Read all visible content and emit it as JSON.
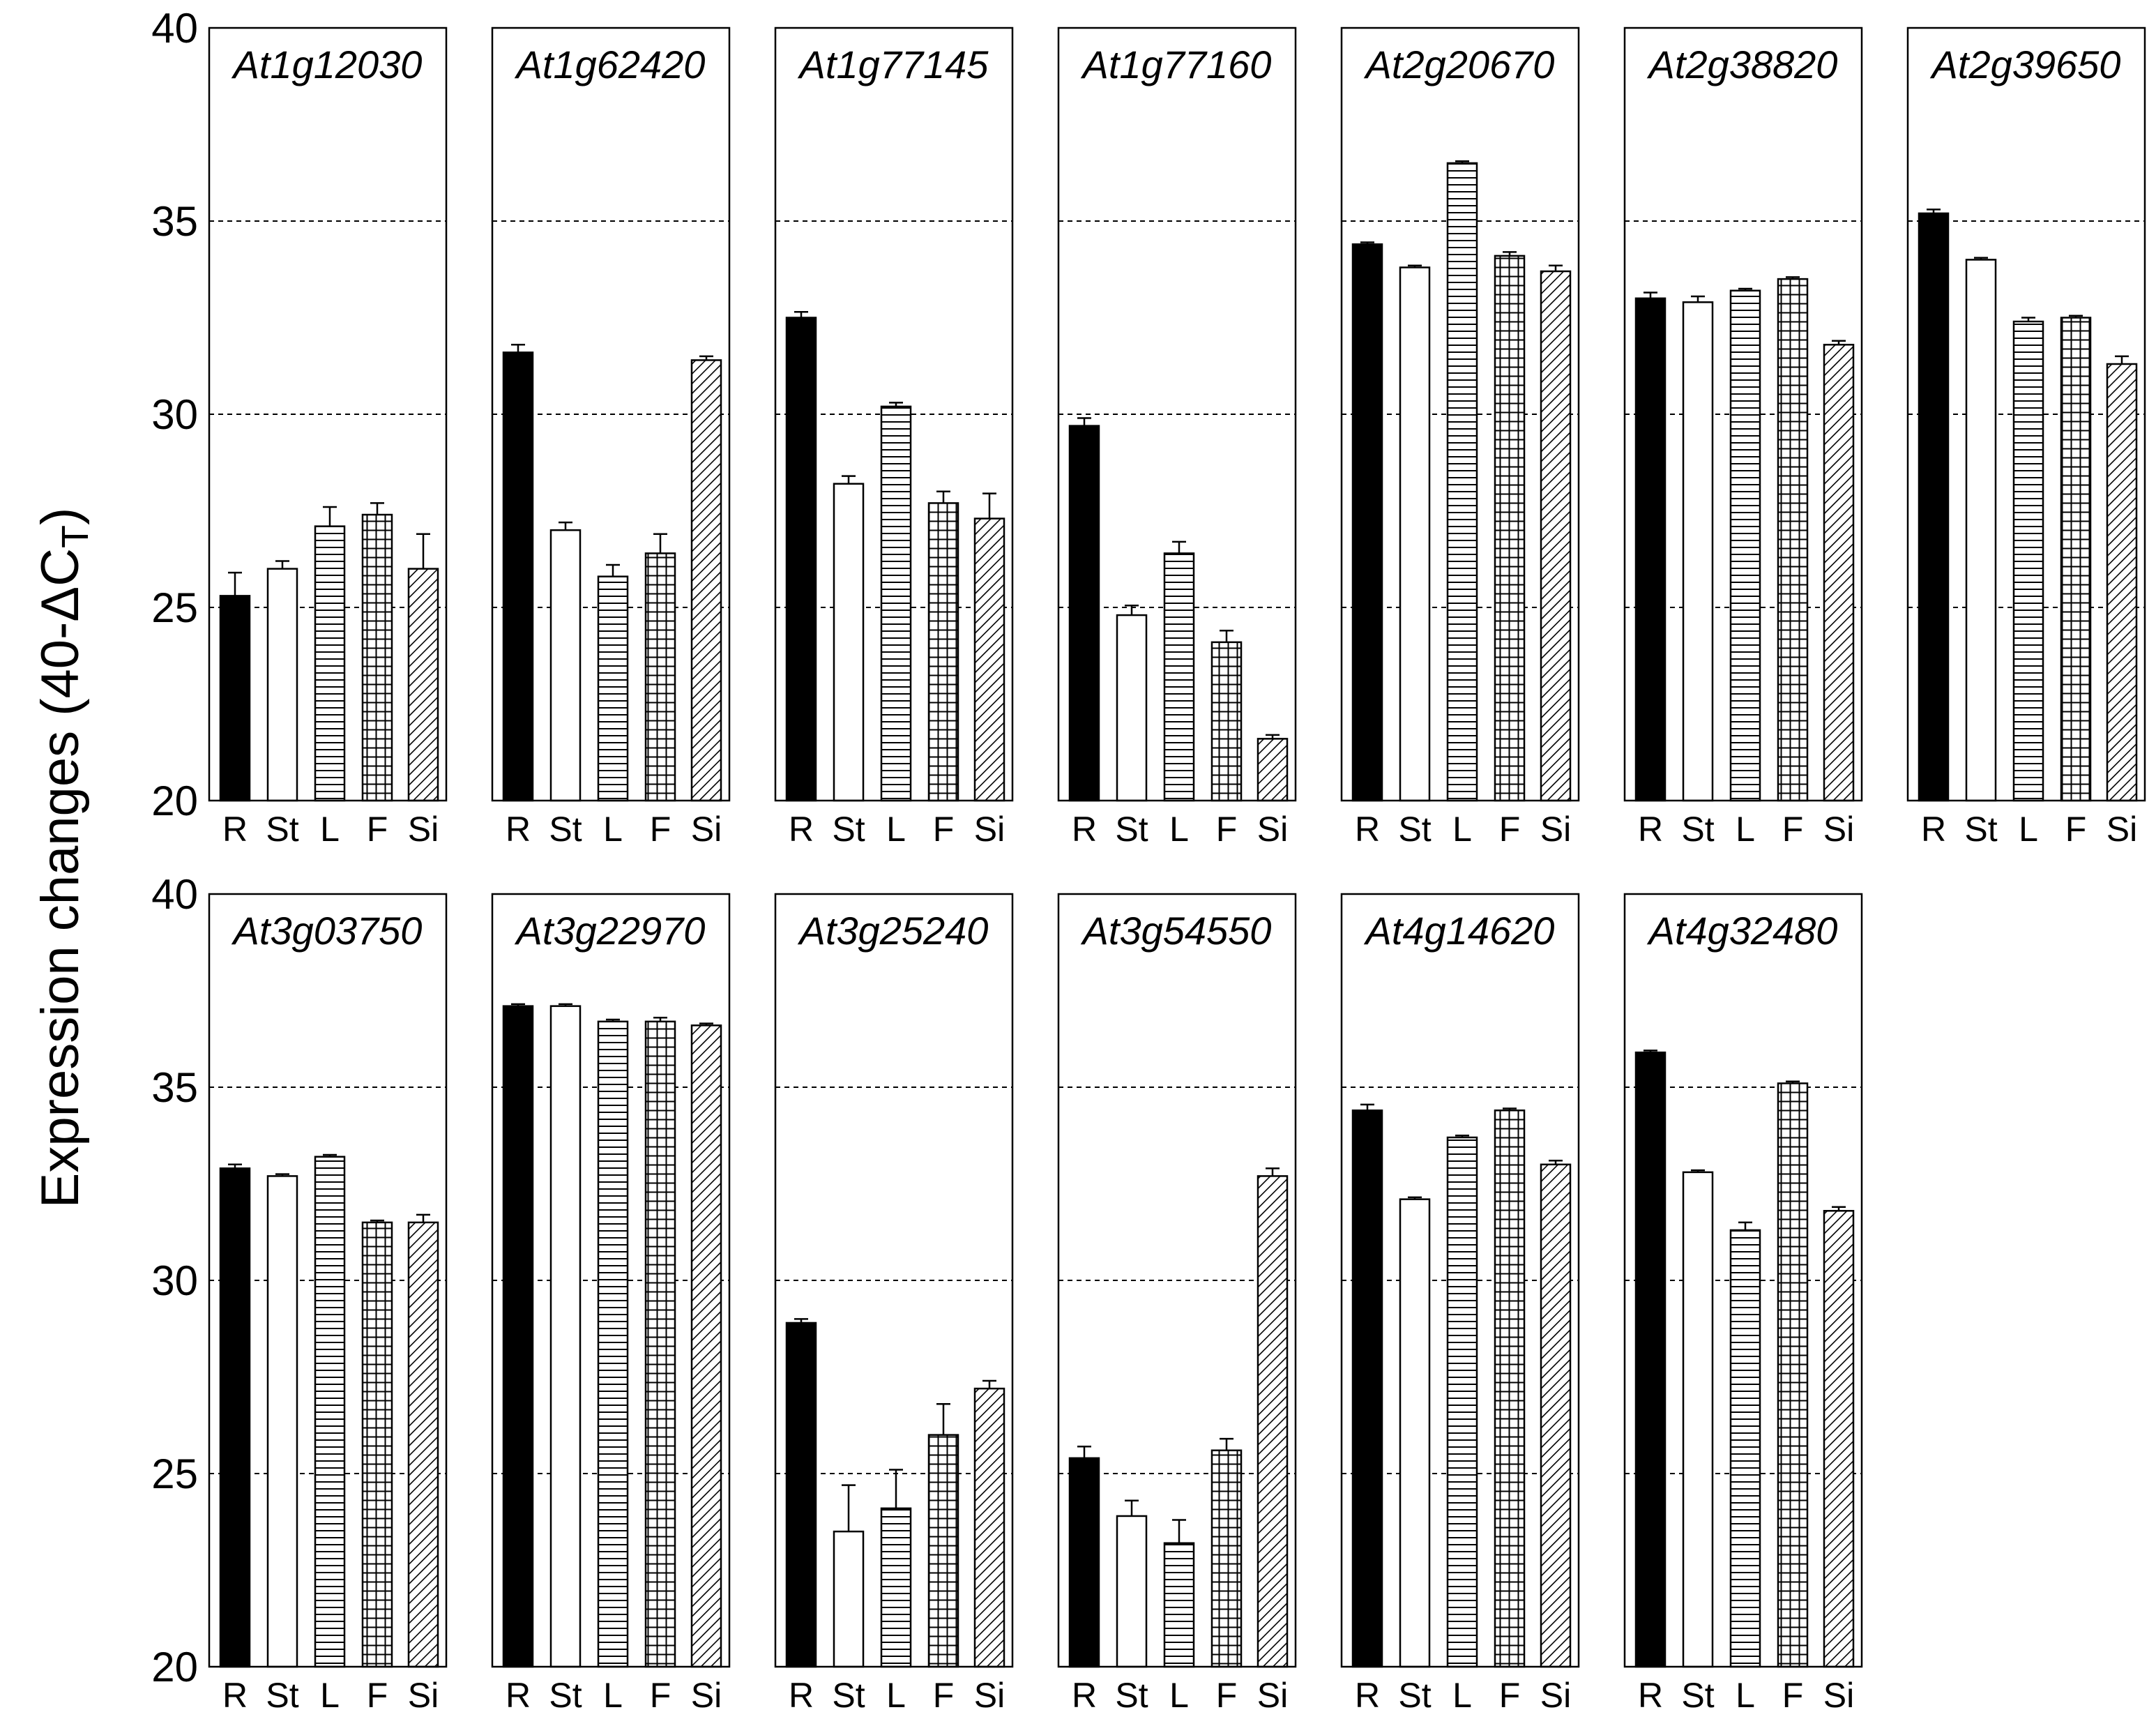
{
  "chart_data": {
    "type": "bar",
    "ylabel": "Expression changes (40-ΔC",
    "ylabel_subscript": "T",
    "ylabel_close": ")",
    "ylim": [
      20,
      40
    ],
    "yticks": [
      20,
      25,
      30,
      35,
      40
    ],
    "gridlines": [
      25,
      30,
      35
    ],
    "categories": [
      "R",
      "St",
      "L",
      "F",
      "Si"
    ],
    "category_fills": {
      "R": "solid-black",
      "St": "white",
      "L": "horizontal-lines",
      "F": "grid",
      "Si": "diagonal-lines"
    },
    "panels": [
      {
        "gene": "At1g12030",
        "values": [
          25.3,
          26.0,
          27.1,
          27.4,
          26.0
        ],
        "errors": [
          0.6,
          0.2,
          0.5,
          0.3,
          0.9
        ]
      },
      {
        "gene": "At1g62420",
        "values": [
          31.6,
          27.0,
          25.8,
          26.4,
          31.4
        ],
        "errors": [
          0.2,
          0.2,
          0.3,
          0.5,
          0.1
        ]
      },
      {
        "gene": "At1g77145",
        "values": [
          32.5,
          28.2,
          30.2,
          27.7,
          27.3
        ],
        "errors": [
          0.15,
          0.2,
          0.1,
          0.3,
          0.65
        ]
      },
      {
        "gene": "At1g77160",
        "values": [
          29.7,
          24.8,
          26.4,
          24.1,
          21.6
        ],
        "errors": [
          0.2,
          0.25,
          0.3,
          0.3,
          0.1
        ]
      },
      {
        "gene": "At2g20670",
        "values": [
          34.4,
          33.8,
          36.5,
          34.1,
          33.7
        ],
        "errors": [
          0.05,
          0.05,
          0.05,
          0.1,
          0.15
        ]
      },
      {
        "gene": "At2g38820",
        "values": [
          33.0,
          32.9,
          33.2,
          33.5,
          31.8
        ],
        "errors": [
          0.15,
          0.15,
          0.05,
          0.05,
          0.1
        ]
      },
      {
        "gene": "At2g39650",
        "values": [
          35.2,
          34.0,
          32.4,
          32.5,
          31.3
        ],
        "errors": [
          0.1,
          0.05,
          0.1,
          0.05,
          0.2
        ]
      },
      {
        "gene": "At3g03750",
        "values": [
          32.9,
          32.7,
          33.2,
          31.5,
          31.5
        ],
        "errors": [
          0.1,
          0.05,
          0.05,
          0.05,
          0.2
        ]
      },
      {
        "gene": "At3g22970",
        "values": [
          37.1,
          37.1,
          36.7,
          36.7,
          36.6
        ],
        "errors": [
          0.05,
          0.05,
          0.05,
          0.1,
          0.05
        ]
      },
      {
        "gene": "At3g25240",
        "values": [
          28.9,
          23.5,
          24.1,
          26.0,
          27.2
        ],
        "errors": [
          0.1,
          1.2,
          1.0,
          0.8,
          0.2
        ]
      },
      {
        "gene": "At3g54550",
        "values": [
          25.4,
          23.9,
          23.2,
          25.6,
          32.7
        ],
        "errors": [
          0.3,
          0.4,
          0.6,
          0.3,
          0.2
        ]
      },
      {
        "gene": "At4g14620",
        "values": [
          34.4,
          32.1,
          33.7,
          34.4,
          33.0
        ],
        "errors": [
          0.15,
          0.05,
          0.05,
          0.05,
          0.1
        ]
      },
      {
        "gene": "At4g32480",
        "values": [
          35.9,
          32.8,
          31.3,
          35.1,
          31.8
        ],
        "errors": [
          0.05,
          0.05,
          0.2,
          0.05,
          0.1
        ]
      }
    ]
  }
}
